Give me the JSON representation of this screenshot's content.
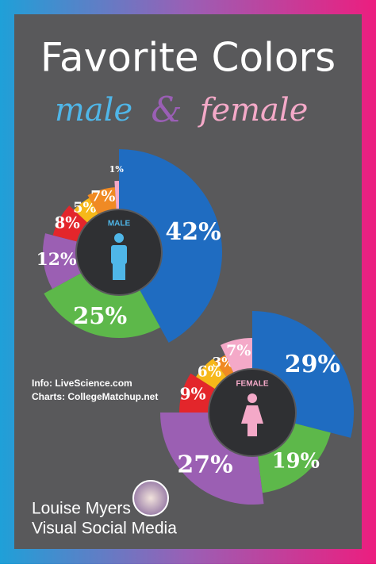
{
  "header": {
    "title": "Favorite Colors",
    "subtitle_male": "male",
    "subtitle_and": "&",
    "subtitle_female": "female"
  },
  "chart_data": [
    {
      "type": "donut",
      "title": "MALE",
      "values": [
        42,
        25,
        12,
        8,
        5,
        7,
        1
      ],
      "value_labels": [
        "42%",
        "25%",
        "12%",
        "8%",
        "5%",
        "7%",
        "1%"
      ],
      "colors": [
        "#1f6cc1",
        "#5db84a",
        "#9b5fb3",
        "#e3262b",
        "#f6b819",
        "#f08a24",
        "#f4a9c8"
      ],
      "title_color": "#4fb6e8"
    },
    {
      "type": "donut",
      "title": "FEMALE",
      "values": [
        29,
        19,
        27,
        9,
        6,
        3,
        7
      ],
      "value_labels": [
        "29%",
        "19%",
        "27%",
        "9%",
        "6%",
        "3%",
        "7%"
      ],
      "colors": [
        "#1f6cc1",
        "#5db84a",
        "#9b5fb3",
        "#e3262b",
        "#f6b819",
        "#f08a24",
        "#f4a9c8"
      ],
      "title_color": "#f4a9c8"
    }
  ],
  "credits": {
    "info": "Info: LiveScience.com",
    "charts": "Charts: CollegeMatchup.net"
  },
  "footer": {
    "name": "Louise Myers",
    "brand": "Visual Social Media"
  }
}
